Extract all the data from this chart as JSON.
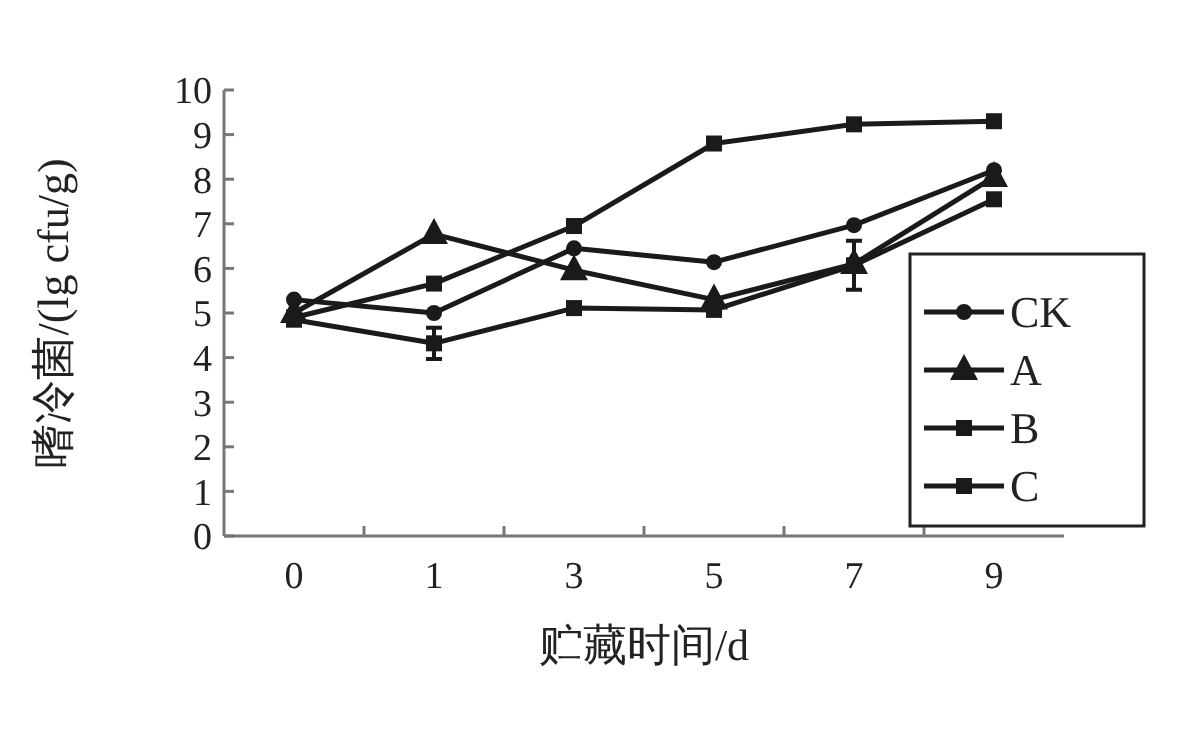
{
  "chart_data": {
    "type": "line",
    "xlabel": "贮藏时间/d",
    "ylabel": "嗜冷菌/(lg cfu/g)",
    "categories": [
      "0",
      "1",
      "3",
      "5",
      "7",
      "9"
    ],
    "ylim": [
      0,
      10
    ],
    "yticks": [
      0,
      1,
      2,
      3,
      4,
      5,
      6,
      7,
      8,
      9,
      10
    ],
    "grid": false,
    "legend": "right",
    "line_style": "solid",
    "series": [
      {
        "name": "CK",
        "color": "#1a1a1a",
        "marker": "circle",
        "values": [
          5.3,
          5.0,
          6.45,
          6.14,
          6.97,
          8.2
        ]
      },
      {
        "name": "A",
        "color": "#1a1a1a",
        "marker": "triangle",
        "values": [
          5.0,
          6.77,
          5.96,
          5.3,
          6.1,
          8.05
        ]
      },
      {
        "name": "B",
        "color": "#1a1a1a",
        "marker": "square",
        "values": [
          4.9,
          5.66,
          6.95,
          8.8,
          9.23,
          9.3
        ]
      },
      {
        "name": "C",
        "color": "#1a1a1a",
        "marker": "square",
        "values": [
          4.85,
          4.32,
          5.11,
          5.07,
          6.07,
          7.55
        ],
        "errors": [
          null,
          0.35,
          null,
          null,
          0.55,
          null
        ]
      }
    ]
  }
}
